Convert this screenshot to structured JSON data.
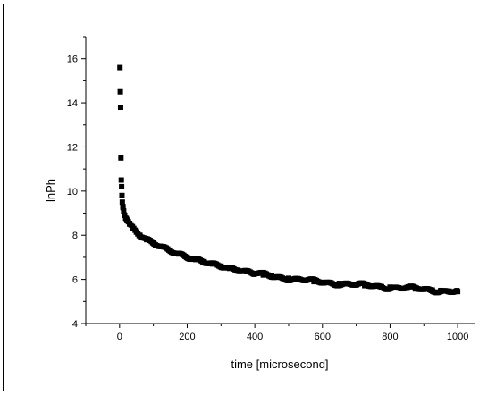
{
  "chart_data": {
    "type": "scatter",
    "title": "",
    "xlabel": "time [microsecond]",
    "ylabel": "lnPh",
    "xlim": [
      -100,
      1050
    ],
    "ylim": [
      4,
      17
    ],
    "xticks": [
      0,
      200,
      400,
      600,
      800,
      1000
    ],
    "xtick_labels": [
      "0",
      "200",
      "400",
      "600",
      "800",
      "1000"
    ],
    "yticks": [
      4,
      6,
      8,
      10,
      12,
      14,
      16
    ],
    "ytick_labels": [
      "4",
      "6",
      "8",
      "10",
      "12",
      "14",
      "16"
    ],
    "grid": false,
    "legend": "none",
    "marker": "square",
    "marker_color": "#000000",
    "series": [
      {
        "x": [
          1,
          2,
          3,
          4,
          5,
          6,
          7,
          8,
          10,
          12,
          15,
          20,
          30,
          40,
          50,
          60,
          80,
          100,
          120,
          150,
          175,
          200,
          225,
          250,
          275,
          300,
          325,
          350,
          375,
          400,
          425,
          450,
          475,
          500,
          525,
          550,
          575,
          600,
          625,
          650,
          675,
          700,
          725,
          750,
          775,
          800,
          825,
          850,
          875,
          900,
          925,
          950,
          975,
          1000
        ],
        "y": [
          15.6,
          14.5,
          13.8,
          11.5,
          10.5,
          10.2,
          9.8,
          9.5,
          9.3,
          9.1,
          8.9,
          8.75,
          8.5,
          8.3,
          8.15,
          8.0,
          7.8,
          7.65,
          7.5,
          7.3,
          7.15,
          7.0,
          6.9,
          6.8,
          6.7,
          6.6,
          6.5,
          6.42,
          6.35,
          6.27,
          6.2,
          6.15,
          6.1,
          6.05,
          6.0,
          5.95,
          5.9,
          5.87,
          5.85,
          5.82,
          5.8,
          5.75,
          5.72,
          5.7,
          5.67,
          5.65,
          5.62,
          5.6,
          5.57,
          5.55,
          5.52,
          5.5,
          5.47,
          5.45
        ]
      }
    ]
  }
}
